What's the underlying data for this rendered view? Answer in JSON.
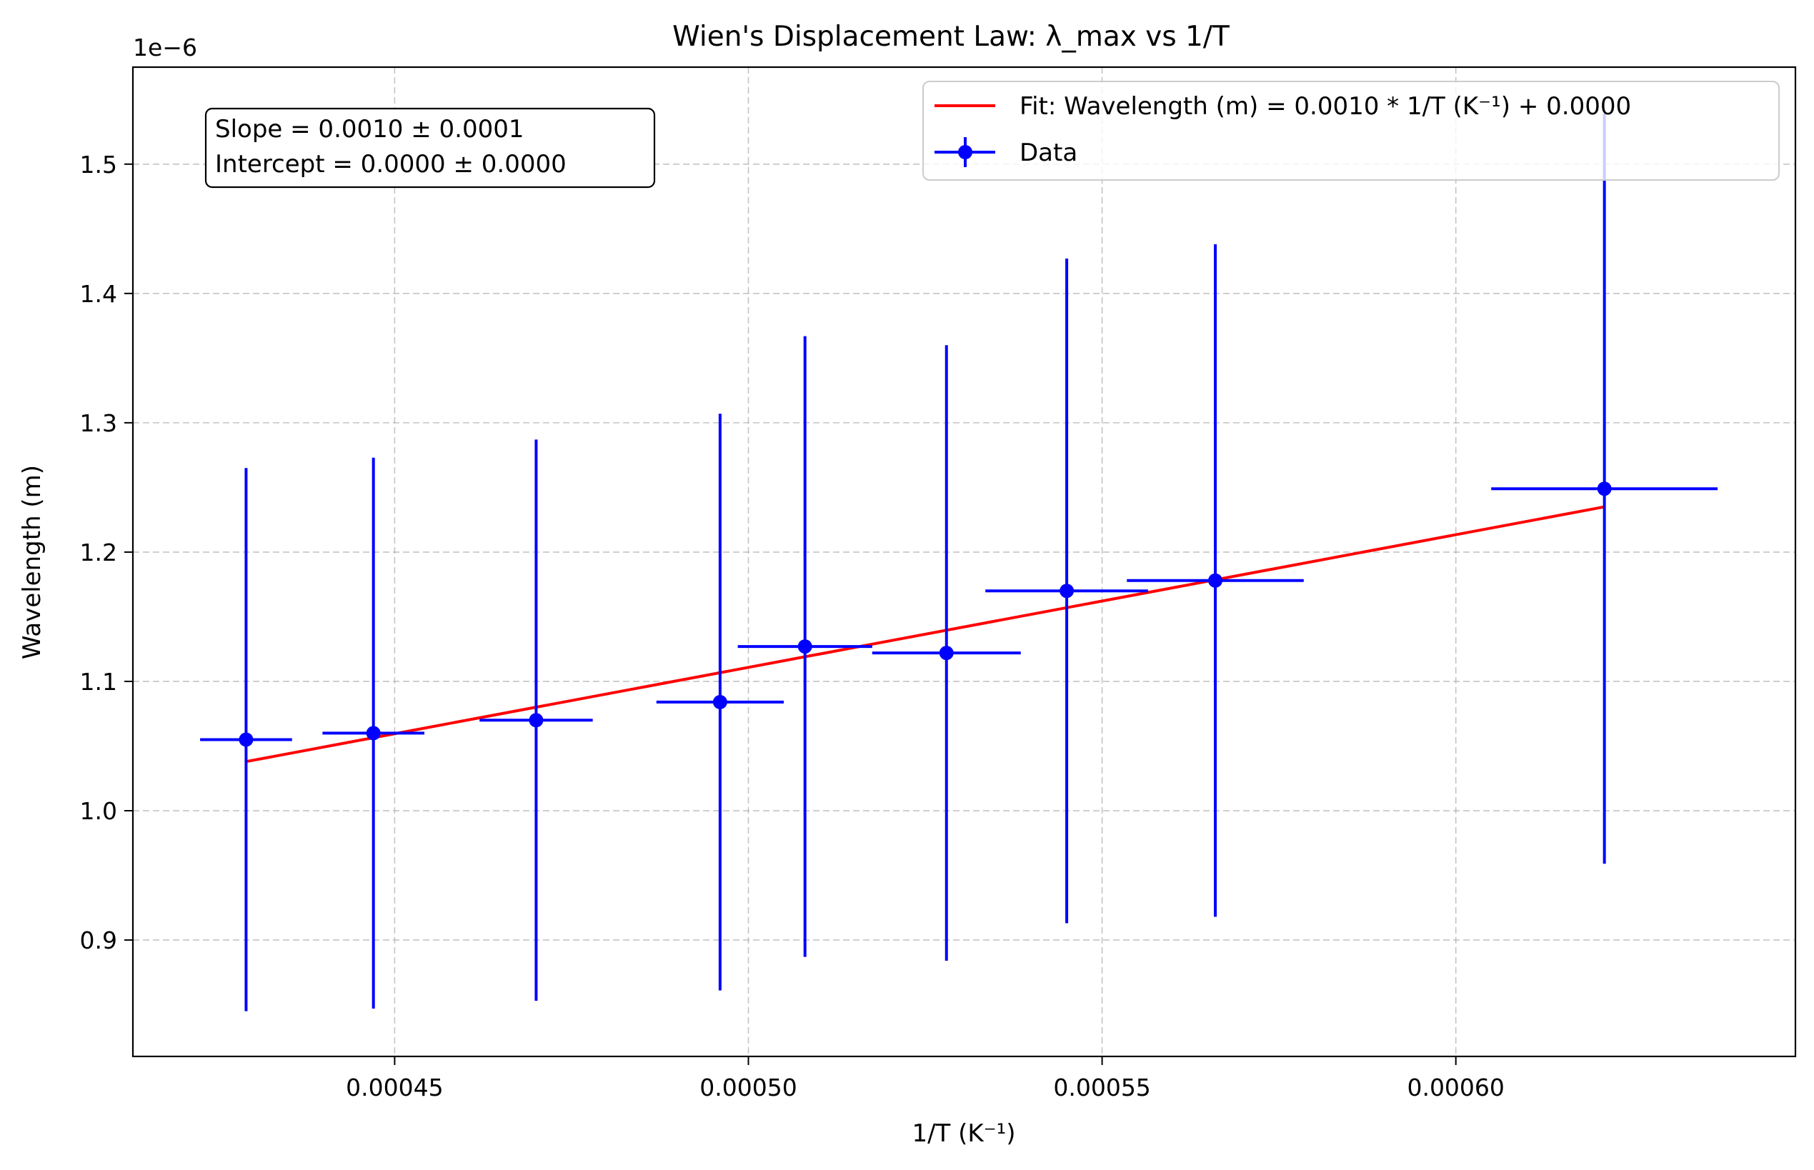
{
  "chart_data": {
    "type": "scatter",
    "title": "Wien's Displacement Law: λ_max vs 1/T",
    "xlabel": "1/T (K⁻¹)",
    "ylabel": "Wavelength (m)",
    "y_offset_label": "1e−6",
    "xlim": [
      0.000413,
      0.000648
    ],
    "ylim": [
      0.81,
      1.575
    ],
    "y_scale_factor": 1e-06,
    "x_ticks": [
      0.00045,
      0.0005,
      0.00055,
      0.0006
    ],
    "x_tick_labels": [
      "0.00045",
      "0.00050",
      "0.00055",
      "0.00060"
    ],
    "y_ticks": [
      0.9,
      1.0,
      1.1,
      1.2,
      1.3,
      1.4,
      1.5
    ],
    "y_tick_labels": [
      "0.9",
      "1.0",
      "1.1",
      "1.2",
      "1.3",
      "1.4",
      "1.5"
    ],
    "grid": true,
    "legend_position": "top-right",
    "series": [
      {
        "name": "Data",
        "kind": "errorbar",
        "color": "#0000ff",
        "points": [
          {
            "x": 0.000429,
            "y": 1.055,
            "xerr": 6.5e-06,
            "yerr": 0.21
          },
          {
            "x": 0.000447,
            "y": 1.06,
            "xerr": 7.2e-06,
            "yerr": 0.213
          },
          {
            "x": 0.00047,
            "y": 1.07,
            "xerr": 8e-06,
            "yerr": 0.217
          },
          {
            "x": 0.000496,
            "y": 1.084,
            "xerr": 9e-06,
            "yerr": 0.223
          },
          {
            "x": 0.000508,
            "y": 1.127,
            "xerr": 9.5e-06,
            "yerr": 0.24
          },
          {
            "x": 0.000528,
            "y": 1.122,
            "xerr": 1.05e-05,
            "yerr": 0.238
          },
          {
            "x": 0.000545,
            "y": 1.17,
            "xerr": 1.15e-05,
            "yerr": 0.257
          },
          {
            "x": 0.000566,
            "y": 1.178,
            "xerr": 1.25e-05,
            "yerr": 0.26
          },
          {
            "x": 0.000621,
            "y": 1.249,
            "xerr": 1.6e-05,
            "yerr": 0.29
          }
        ]
      },
      {
        "name": "Fit: Wavelength (m) = 0.0010 * 1/T (K⁻¹) + 0.0000",
        "kind": "line",
        "color": "#ff0000",
        "x": [
          0.000429,
          0.000621
        ],
        "y": [
          1.038,
          1.235
        ]
      }
    ],
    "annotation": {
      "lines": [
        "Slope = 0.0010 ± 0.0001",
        "Intercept = 0.0000 ± 0.0000"
      ]
    }
  }
}
